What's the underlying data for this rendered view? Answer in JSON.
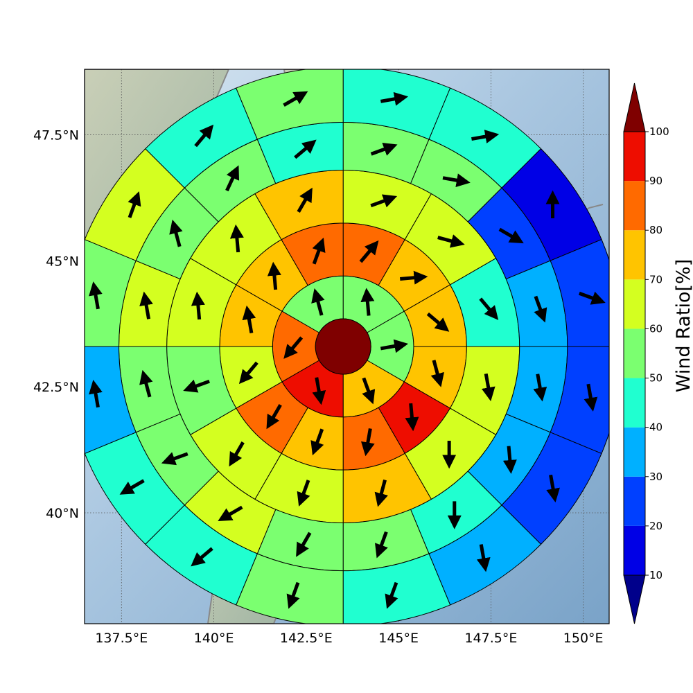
{
  "chart_data": {
    "type": "heatmap",
    "title": "",
    "xlabel": "",
    "ylabel": "",
    "xlim": [
      136.5,
      150.7
    ],
    "ylim": [
      37.8,
      48.8
    ],
    "x_ticks": [
      {
        "value": 137.5,
        "label": "137.5°E"
      },
      {
        "value": 140.0,
        "label": "140°E"
      },
      {
        "value": 142.5,
        "label": "142.5°E"
      },
      {
        "value": 145.0,
        "label": "145°E"
      },
      {
        "value": 147.5,
        "label": "147.5°E"
      },
      {
        "value": 150.0,
        "label": "150°E"
      }
    ],
    "y_ticks": [
      {
        "value": 47.5,
        "label": "47.5°N"
      },
      {
        "value": 45.0,
        "label": "45°N"
      },
      {
        "value": 42.5,
        "label": "42.5°N"
      },
      {
        "value": 40.0,
        "label": "40°N"
      }
    ],
    "grid": true,
    "grid_style": "dotted",
    "basemap": "shaded relief with coastlines",
    "center": {
      "lon": 143.5,
      "lat": 43.3,
      "value": 100
    },
    "colorbar": {
      "label": "Wind Ratio[%]",
      "min": 10,
      "max": 100,
      "extend": "both",
      "ticks": [
        10,
        20,
        30,
        40,
        50,
        60,
        70,
        80,
        90,
        100
      ],
      "colors": [
        "#00008b",
        "#0000e6",
        "#0040ff",
        "#00b0ff",
        "#20ffd0",
        "#7bff70",
        "#d4ff20",
        "#ffc400",
        "#ff6a00",
        "#ee0d00",
        "#7f0000"
      ]
    },
    "rings": [
      {
        "ring": 1,
        "radius_deg": 1.4,
        "sectors": 6,
        "ratio": [
          50,
          50,
          70,
          90,
          80,
          50
        ],
        "wind_dir_deg": [
          355,
          80,
          160,
          170,
          220,
          345
        ]
      },
      {
        "ring": 2,
        "radius_deg": 2.45,
        "sectors": 12,
        "ratio": [
          80,
          70,
          70,
          70,
          90,
          80,
          70,
          80,
          60,
          70,
          70,
          80
        ],
        "wind_dir_deg": [
          40,
          85,
          130,
          165,
          175,
          190,
          200,
          210,
          220,
          350,
          355,
          20
        ]
      },
      {
        "ring": 3,
        "radius_deg": 3.5,
        "sectors": 12,
        "ratio": [
          60,
          60,
          40,
          60,
          60,
          70,
          60,
          60,
          50,
          60,
          60,
          70
        ],
        "wind_dir_deg": [
          70,
          105,
          140,
          170,
          180,
          195,
          200,
          210,
          250,
          355,
          355,
          30
        ]
      },
      {
        "ring": 3.5,
        "radius_deg": 4.45,
        "sectors": 16,
        "ratio": [
          50,
          50,
          20,
          30,
          30,
          30,
          40,
          50,
          50,
          60,
          50,
          50,
          60,
          50,
          50,
          40
        ],
        "wind_dir_deg": [
          70,
          100,
          120,
          160,
          170,
          175,
          180,
          200,
          210,
          240,
          250,
          345,
          350,
          345,
          25,
          50
        ]
      },
      {
        "ring": 4,
        "radius_deg": 5.55,
        "sectors": 16,
        "ratio": [
          40,
          40,
          10,
          20,
          20,
          20,
          30,
          40,
          50,
          40,
          40,
          30,
          50,
          60,
          40,
          50
        ],
        "wind_dir_deg": [
          80,
          80,
          0,
          110,
          170,
          170,
          170,
          200,
          200,
          230,
          240,
          350,
          350,
          20,
          40,
          60
        ]
      }
    ]
  }
}
